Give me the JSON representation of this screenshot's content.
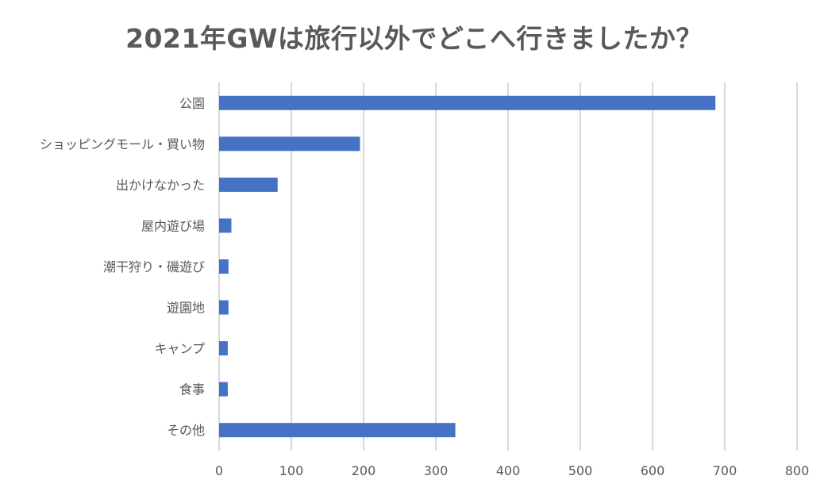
{
  "chart_data": {
    "type": "bar",
    "orientation": "horizontal",
    "title": "2021年GWは旅行以外でどこへ行きましたか？",
    "categories": [
      "公園",
      "ショッピングモール・買い物",
      "出かけなかった",
      "屋内遊び場",
      "潮干狩り・磯遊び",
      "遊園地",
      "キャンプ",
      "食事",
      "その他"
    ],
    "values": [
      687,
      195,
      81,
      17,
      13,
      13,
      12,
      12,
      327
    ],
    "xlim": [
      0,
      800
    ],
    "xticks": [
      0,
      100,
      200,
      300,
      400,
      500,
      600,
      700,
      800
    ],
    "grid": "vertical",
    "legend": "none",
    "bar_color": "#4472C4",
    "grid_color": "#D9D9D9"
  }
}
